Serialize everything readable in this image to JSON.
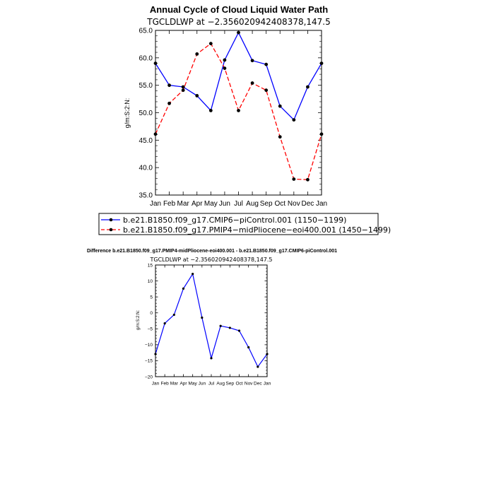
{
  "chart_data": [
    {
      "type": "line",
      "title": "Annual Cycle of Cloud Liquid Water Path",
      "subtitle": "TGCLDLWP  at  −2.356020942408378,147.5",
      "xlabel": "",
      "ylabel": "g/m:S:2:N:",
      "categories": [
        "Jan",
        "Feb",
        "Mar",
        "Apr",
        "May",
        "Jun",
        "Jul",
        "Aug",
        "Sep",
        "Oct",
        "Nov",
        "Dec",
        "Jan"
      ],
      "ylim": [
        35,
        65
      ],
      "yticks": [
        "35.0",
        "40.0",
        "45.0",
        "50.0",
        "55.0",
        "60.0",
        "65.0"
      ],
      "series": [
        {
          "name": "b.e21.B1850.f09_g17.CMIP6−piControl.001 (1150−1199)",
          "color": "#0000ff",
          "style": "solid",
          "values": [
            59.0,
            55.0,
            54.7,
            53.1,
            50.4,
            59.6,
            64.6,
            59.5,
            58.8,
            51.2,
            48.7,
            54.7,
            59.0
          ]
        },
        {
          "name": "b.e21.B1850.f09_g17.PMIP4−midPliocene−eoi400.001 (1450−1499)",
          "color": "#ff0000",
          "style": "dashed",
          "values": [
            46.1,
            51.7,
            54.1,
            60.7,
            62.6,
            58.1,
            50.4,
            55.4,
            54.1,
            45.6,
            37.9,
            37.8,
            46.1
          ]
        }
      ]
    },
    {
      "type": "line",
      "title": "Difference b.e21.B1850.f09_g17.PMIP4-midPliocene-eoi400.001 - b.e21.B1850.f09_g17.CMIP6-piControl.001",
      "subtitle": "TGCLDLWP  at  −2.356020942408378,147.5",
      "xlabel": "",
      "ylabel": "g/m:S:2:N:",
      "categories": [
        "Jan",
        "Feb",
        "Mar",
        "Apr",
        "May",
        "Jun",
        "Jul",
        "Aug",
        "Sep",
        "Oct",
        "Nov",
        "Dec",
        "Jan"
      ],
      "ylim": [
        -20,
        15
      ],
      "yticks": [
        "−20",
        "−15",
        "−10",
        "−5",
        "0",
        "5",
        "10",
        "15"
      ],
      "series": [
        {
          "name": "Difference",
          "color": "#0000ff",
          "style": "solid",
          "values": [
            -12.9,
            -3.3,
            -0.6,
            7.6,
            12.2,
            -1.5,
            -14.2,
            -4.1,
            -4.7,
            -5.6,
            -10.8,
            -16.9,
            -12.9
          ]
        }
      ]
    }
  ]
}
